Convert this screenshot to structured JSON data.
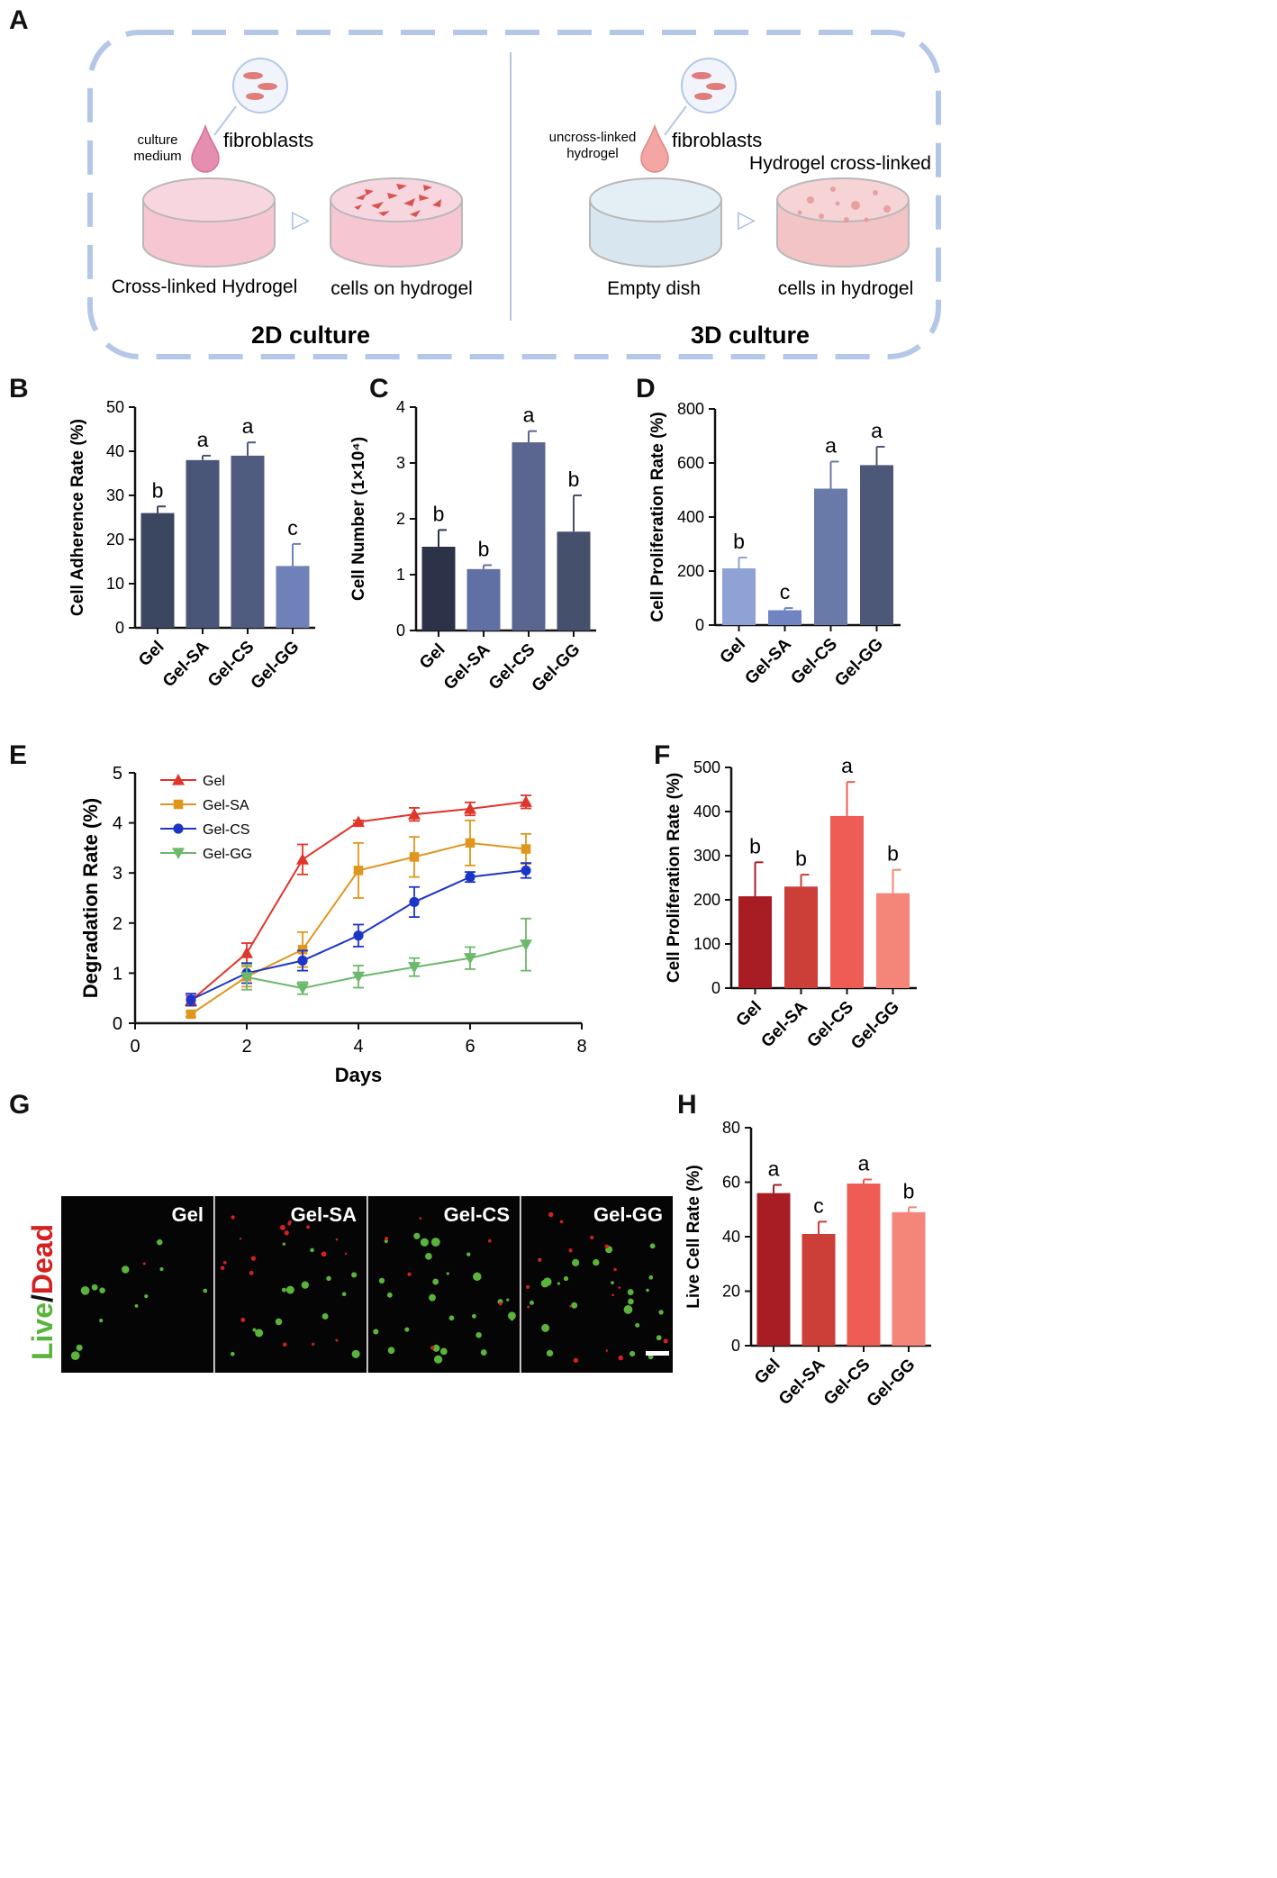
{
  "panel_labels": [
    "A",
    "B",
    "C",
    "D",
    "E",
    "F",
    "G",
    "H"
  ],
  "schematic": {
    "left": {
      "drop_label_line1": "culture",
      "drop_label_line2": "medium",
      "cells_label": "fibroblasts",
      "dish1_label": "Cross-linked Hydrogel",
      "dish2_label": "cells on hydrogel",
      "title": "2D culture"
    },
    "right": {
      "drop_label_line1": "uncross-linked",
      "drop_label_line2": "hydrogel",
      "cells_label": "fibroblasts",
      "crosslink_label": "Hydrogel cross-linked",
      "dish1_label": "Empty dish",
      "dish2_label": "cells in hydrogel",
      "title": "3D culture"
    },
    "colors": {
      "border": "#b4c7e7",
      "pink": "#e58fb0",
      "dish_pink": "#f7d2dc",
      "dish_blue": "#dfeaf2",
      "cell_red": "#d9534f"
    }
  },
  "micrograph": {
    "side_label_live": "Live",
    "side_label_slash": "/",
    "side_label_dead": "Dead",
    "tiles": [
      "Gel",
      "Gel-SA",
      "Gel-CS",
      "Gel-GG"
    ],
    "colors": {
      "live": "#5ab43c",
      "dead": "#d42020",
      "bg": "#050505"
    }
  },
  "chart_data": [
    {
      "id": "B",
      "type": "bar",
      "categories": [
        "Gel",
        "Gel-SA",
        "Gel-CS",
        "Gel-GG"
      ],
      "values": [
        26,
        38,
        39,
        14
      ],
      "errors": [
        1.5,
        1.0,
        3.0,
        5.0
      ],
      "letters": [
        "b",
        "a",
        "a",
        "c"
      ],
      "ylabel": "Cell Adherence Rate (%)",
      "ylim": [
        0,
        50
      ],
      "yticks": [
        0,
        10,
        20,
        30,
        40,
        50
      ],
      "colors": [
        "#3b4660",
        "#4a5678",
        "#505b80",
        "#7080b8"
      ]
    },
    {
      "id": "C",
      "type": "bar",
      "categories": [
        "Gel",
        "Gel-SA",
        "Gel-CS",
        "Gel-GG"
      ],
      "values": [
        1.5,
        1.1,
        3.37,
        1.77
      ],
      "errors": [
        0.3,
        0.07,
        0.2,
        0.65
      ],
      "letters": [
        "b",
        "b",
        "a",
        "b"
      ],
      "ylabel": "Cell Number (1×10⁴)",
      "ylim": [
        0,
        4
      ],
      "yticks": [
        0,
        1,
        2,
        3,
        4
      ],
      "colors": [
        "#2c3348",
        "#6070a4",
        "#5a6590",
        "#45506c"
      ]
    },
    {
      "id": "D",
      "type": "bar",
      "categories": [
        "Gel",
        "Gel-SA",
        "Gel-CS",
        "Gel-GG"
      ],
      "values": [
        210,
        55,
        505,
        592
      ],
      "errors": [
        40,
        8,
        100,
        68
      ],
      "letters": [
        "b",
        "c",
        "a",
        "a"
      ],
      "ylabel": "Cell Proliferation Rate (%)",
      "ylim": [
        0,
        800
      ],
      "yticks": [
        0,
        200,
        400,
        600,
        800
      ],
      "colors": [
        "#8ea2d6",
        "#6f84c0",
        "#6a7aa8",
        "#4d5878"
      ]
    },
    {
      "id": "E",
      "type": "line",
      "title": "",
      "xlabel": "Days",
      "ylabel": "Degradation Rate (%)",
      "xlim": [
        0,
        8
      ],
      "ylim": [
        0,
        5
      ],
      "xticks": [
        0,
        2,
        4,
        6,
        8
      ],
      "yticks": [
        0,
        1,
        2,
        3,
        4,
        5
      ],
      "series": [
        {
          "name": "Gel",
          "color": "#e0352a",
          "marker": "triangle-up",
          "x": [
            1,
            2,
            3,
            4,
            5,
            6,
            7
          ],
          "y": [
            0.45,
            1.4,
            3.27,
            4.02,
            4.17,
            4.28,
            4.42
          ],
          "err": [
            0.1,
            0.2,
            0.3,
            0.03,
            0.13,
            0.13,
            0.13
          ]
        },
        {
          "name": "Gel-SA",
          "color": "#e0961c",
          "marker": "square",
          "x": [
            1,
            2,
            3,
            4,
            5,
            6,
            7
          ],
          "y": [
            0.18,
            0.93,
            1.47,
            3.05,
            3.32,
            3.6,
            3.48
          ],
          "err": [
            0.05,
            0.2,
            0.35,
            0.55,
            0.4,
            0.45,
            0.3
          ]
        },
        {
          "name": "Gel-CS",
          "color": "#1c35c8",
          "marker": "circle",
          "x": [
            1,
            2,
            3,
            4,
            5,
            6,
            7
          ],
          "y": [
            0.47,
            1.0,
            1.25,
            1.75,
            2.42,
            2.92,
            3.05
          ],
          "err": [
            0.12,
            0.2,
            0.2,
            0.22,
            0.3,
            0.1,
            0.15
          ]
        },
        {
          "name": "Gel-GG",
          "color": "#6cb86c",
          "marker": "triangle-down",
          "x": [
            2,
            3,
            4,
            5,
            6,
            7
          ],
          "y": [
            0.92,
            0.7,
            0.93,
            1.12,
            1.3,
            1.57
          ],
          "err": [
            0.25,
            0.12,
            0.22,
            0.18,
            0.22,
            0.52
          ]
        }
      ],
      "legend_position": "top-left"
    },
    {
      "id": "F",
      "type": "bar",
      "categories": [
        "Gel",
        "Gel-SA",
        "Gel-CS",
        "Gel-GG"
      ],
      "values": [
        208,
        230,
        390,
        215
      ],
      "errors": [
        77,
        27,
        77,
        53
      ],
      "letters": [
        "b",
        "b",
        "a",
        "b"
      ],
      "ylabel": "Cell Proliferation Rate (%)",
      "ylim": [
        0,
        500
      ],
      "yticks": [
        0,
        100,
        200,
        300,
        400,
        500
      ],
      "colors": [
        "#a81c24",
        "#cc3e38",
        "#ee5c55",
        "#f48579"
      ]
    },
    {
      "id": "H",
      "type": "bar",
      "categories": [
        "Gel",
        "Gel-SA",
        "Gel-CS",
        "Gel-GG"
      ],
      "values": [
        56,
        41,
        59.5,
        49
      ],
      "errors": [
        3,
        4.5,
        1.5,
        1.8
      ],
      "letters": [
        "a",
        "c",
        "a",
        "b"
      ],
      "ylabel": "Live Cell Rate (%)",
      "ylim": [
        0,
        80
      ],
      "yticks": [
        0,
        20,
        40,
        60,
        80
      ],
      "colors": [
        "#a81c24",
        "#cc3e38",
        "#ee5c55",
        "#f48579"
      ]
    }
  ]
}
